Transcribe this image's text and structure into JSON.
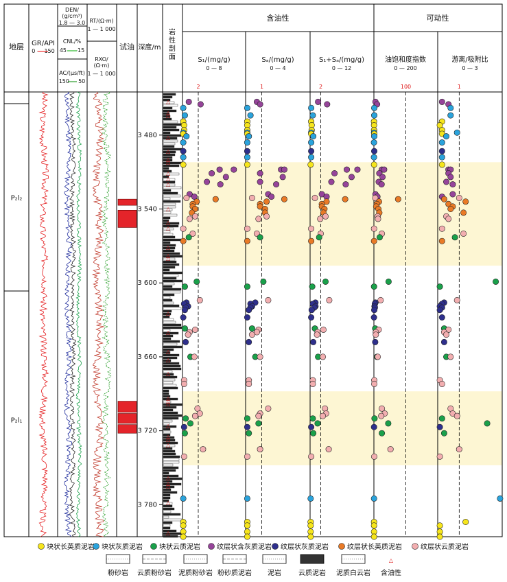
{
  "header": {
    "formation": "地层",
    "gr_label": "GR/API",
    "gr_scale": "0 — 150",
    "den_label": "DEN/",
    "den_unit": "(g/cm³)",
    "den_scale": "1.8 — 3.0",
    "cnl_label": "CNL/%",
    "cnl_scale": "45 — -15",
    "ac_label": "AC/(μs/ft)",
    "ac_scale": "150 — 50",
    "rt_label": "RT/(Ω·m)",
    "rt_scale": "1 — 1 000",
    "rxo_label": "RXO/",
    "rxo_unit": "(Ω·m)",
    "rxo_scale": "1 — 1 000",
    "test_oil": "试油",
    "depth": "深度/m",
    "lithology": "岩性剖面",
    "oil_bearing": "含油性",
    "mobility": "可动性",
    "s1_label": "S₁/(mg/g)",
    "s1_scale": "0 — 8",
    "sa_label": "Sₐ/(mg/g)",
    "sa_scale": "0 — 4",
    "sum_label": "S₁+Sₐ/(mg/g)",
    "sum_scale": "0 — 12",
    "osi_label": "油饱和度指数",
    "osi_scale": "0 — 200",
    "ratio_label": "游离/吸附比",
    "ratio_scale": "0 — 3"
  },
  "formations": [
    {
      "name": "P₂l₂",
      "top": 3445,
      "bottom": 3616
    },
    {
      "name": "P₂l₁",
      "top": 3616,
      "bottom": 3806
    }
  ],
  "depth_ticks": [
    "3 480",
    "3 540",
    "3 600",
    "3 660",
    "3 720",
    "3 780"
  ],
  "cutoffs": [
    "2",
    "1",
    "2",
    "100",
    "1"
  ],
  "highlights": [
    [
      3502,
      3586
    ],
    [
      3688,
      3748
    ]
  ],
  "test_intervals": [
    [
      3532,
      3537
    ],
    [
      3541,
      3555
    ],
    [
      3696,
      3705
    ],
    [
      3706,
      3714
    ],
    [
      3715,
      3722
    ]
  ],
  "legend": {
    "facies": [
      {
        "label": "块状长英质泥岩",
        "color": "#f6e51c"
      },
      {
        "label": "块状灰质泥岩",
        "color": "#2aa3dc"
      },
      {
        "label": "块状云质泥岩",
        "color": "#1aa04a"
      },
      {
        "label": "纹层状含灰质泥岩",
        "color": "#96449a"
      },
      {
        "label": "纹层状灰质泥岩",
        "color": "#2e2f8c"
      },
      {
        "label": "纹层状长英质泥岩",
        "color": "#e97a26"
      },
      {
        "label": "纹层状云质泥岩",
        "color": "#f2aeb0"
      }
    ],
    "lithologies": [
      "粉砂岩",
      "云质粉砂岩",
      "泥质粉砂岩",
      "粉砂质泥岩",
      "泥岩",
      "云质泥岩",
      "泥质白云岩",
      "含油性"
    ]
  },
  "chart_data": {
    "type": "scatter",
    "depth_range": [
      3445,
      3806
    ],
    "x_ranges": {
      "s1": [
        0,
        8
      ],
      "sa": [
        0,
        4
      ],
      "sum": [
        0,
        12
      ],
      "osi": [
        0,
        200
      ],
      "ratio": [
        0,
        3
      ]
    },
    "fields": [
      "depth",
      "facies",
      "s1",
      "sa",
      "sum",
      "osi",
      "ratio"
    ],
    "samples": [
      [
        3453,
        3,
        0.8,
        0.7,
        1.5,
        5,
        0.2
      ],
      [
        3455,
        3,
        2.3,
        0.9,
        3.2,
        10,
        0.5
      ],
      [
        3458,
        1,
        0.1,
        0.1,
        0.2,
        1,
        0.6
      ],
      [
        3464,
        1,
        0.3,
        0.3,
        0.5,
        1,
        0.6
      ],
      [
        3469,
        0,
        0.1,
        0.1,
        0.2,
        0.2,
        0.2
      ],
      [
        3472,
        0,
        0.2,
        0.1,
        0.3,
        0.5,
        0.1
      ],
      [
        3476,
        0,
        0.2,
        0.1,
        0.3,
        0.5,
        0.2
      ],
      [
        3478,
        1,
        0.1,
        0.1,
        0.2,
        0.5,
        0.9
      ],
      [
        3479,
        0,
        0.1,
        0.1,
        0.2,
        1,
        0.2
      ],
      [
        3481,
        1,
        0.5,
        0.2,
        0.6,
        1,
        0.4
      ],
      [
        3486,
        1,
        0.1,
        0.1,
        0.2,
        0.2,
        0.2
      ],
      [
        3493,
        4,
        0.1,
        0.1,
        0.2,
        1,
        0.2
      ],
      [
        3498,
        1,
        0.1,
        0.1,
        0.2,
        0.2,
        0.2
      ],
      [
        3504,
        0,
        0.1,
        0.1,
        0.1,
        0.5,
        0.2
      ],
      [
        3508,
        3,
        4.7,
        2.2,
        6.9,
        25,
        0.5
      ],
      [
        3508,
        3,
        6.5,
        2.4,
        8.9,
        32,
        0.6
      ],
      [
        3511,
        3,
        3.7,
        0.9,
        4.6,
        17,
        0.5
      ],
      [
        3514,
        3,
        5.5,
        2.3,
        7.8,
        27,
        0.6
      ],
      [
        3518,
        3,
        3.1,
        0.9,
        4.0,
        15,
        0.4
      ],
      [
        3520,
        3,
        4.8,
        1.9,
        6.7,
        24,
        0.7
      ],
      [
        3528,
        3,
        0.9,
        1.4,
        2.2,
        5,
        0.7
      ],
      [
        3530,
        3,
        1.5,
        1.6,
        3.1,
        11,
        0.2
      ],
      [
        3531,
        6,
        0.5,
        0.4,
        0.9,
        4,
        1.0
      ],
      [
        3532,
        5,
        4.2,
        2.4,
        6.6,
        76,
        0.3
      ],
      [
        3534,
        5,
        1.8,
        1.3,
        3.1,
        16,
        1.3
      ],
      [
        3536,
        5,
        1.3,
        0.9,
        2.2,
        9,
        0.5
      ],
      [
        3538,
        5,
        1.3,
        0.9,
        2.2,
        7,
        0.7
      ],
      [
        3540,
        5,
        1.6,
        1.2,
        2.7,
        14,
        0.6
      ],
      [
        3543,
        5,
        1.2,
        1.2,
        2.5,
        17,
        1.2
      ],
      [
        3546,
        6,
        1.6,
        1.3,
        2.9,
        12,
        0.4
      ],
      [
        3548,
        6,
        0.9,
        0.8,
        1.9,
        13,
        0.5
      ],
      [
        3556,
        6,
        0.1,
        0.1,
        0.2,
        0.5,
        0.2
      ],
      [
        3560,
        6,
        1.3,
        0.7,
        2.0,
        25,
        1.2
      ],
      [
        3563,
        2,
        0.8,
        0.9,
        1.7,
        18,
        0.8
      ],
      [
        3566,
        5,
        0.1,
        0.1,
        0.2,
        0.5,
        0.2
      ],
      [
        3599,
        2,
        1.8,
        1.1,
        2.9,
        46,
        2.7
      ],
      [
        3603,
        2,
        0.3,
        0.1,
        0.4,
        0.5,
        0.1
      ],
      [
        3614,
        6,
        2.2,
        1.4,
        3.6,
        21,
        0.9
      ],
      [
        3616,
        4,
        0.5,
        0.6,
        1.0,
        5,
        0.3
      ],
      [
        3617,
        4,
        0.2,
        0.3,
        0.5,
        3,
        0.2
      ],
      [
        3619,
        4,
        0.7,
        0.4,
        1.0,
        2,
        0.1
      ],
      [
        3620,
        4,
        0.4,
        0.3,
        0.8,
        3,
        0.2
      ],
      [
        3622,
        4,
        0.3,
        0.2,
        0.3,
        1,
        0.1
      ],
      [
        3628,
        4,
        0.1,
        0.1,
        0.2,
        0.2,
        0.2
      ],
      [
        3637,
        2,
        0.3,
        0.4,
        0.9,
        4,
        0.3
      ],
      [
        3638,
        6,
        1.6,
        0.8,
        2.5,
        15,
        0.5
      ],
      [
        3640,
        6,
        0.9,
        0.7,
        1.4,
        6,
        0.3
      ],
      [
        3642,
        6,
        0.7,
        0.4,
        1.3,
        6,
        0.4
      ],
      [
        3648,
        4,
        0.4,
        0.2,
        0.6,
        4,
        0.3
      ],
      [
        3660,
        2,
        1.0,
        0.6,
        1.5,
        10,
        0.4
      ],
      [
        3660,
        6,
        1.5,
        0.9,
        2.4,
        12,
        0.6
      ],
      [
        3679,
        6,
        0.2,
        0.2,
        0.5,
        1,
        0.1
      ],
      [
        3682,
        6,
        0.2,
        0.2,
        0.5,
        1,
        0.2
      ],
      [
        3702,
        6,
        1.9,
        1.4,
        2.8,
        25,
        0.6
      ],
      [
        3706,
        6,
        2.2,
        0.9,
        3.0,
        34,
        0.7
      ],
      [
        3708,
        6,
        1.6,
        0.8,
        2.4,
        23,
        0.9
      ],
      [
        3710,
        2,
        0.4,
        0.1,
        0.5,
        2,
        0.2
      ],
      [
        3714,
        2,
        1.0,
        0.8,
        1.4,
        45,
        2.3
      ],
      [
        3717,
        4,
        0.2,
        0.1,
        0.2,
        0.5,
        0.1
      ],
      [
        3722,
        2,
        0.3,
        0.2,
        0.6,
        25,
        0.3
      ],
      [
        3735,
        6,
        2.6,
        0.9,
        3.5,
        52,
        1.0
      ],
      [
        3741,
        6,
        0.2,
        0.1,
        0.2,
        1,
        0.1
      ],
      [
        3775,
        1,
        0.1,
        0.1,
        0.1,
        0.5,
        2.9
      ],
      [
        3794,
        0,
        0.1,
        0.1,
        0.1,
        0.5,
        1.3
      ],
      [
        3797,
        0,
        0.1,
        0.1,
        0.1,
        0.5,
        0.1
      ],
      [
        3802,
        0,
        0.1,
        0.1,
        0.1,
        0.5,
        0.1
      ],
      [
        3806,
        0,
        0.1,
        0.1,
        0.1,
        0.5,
        0.1
      ]
    ]
  }
}
